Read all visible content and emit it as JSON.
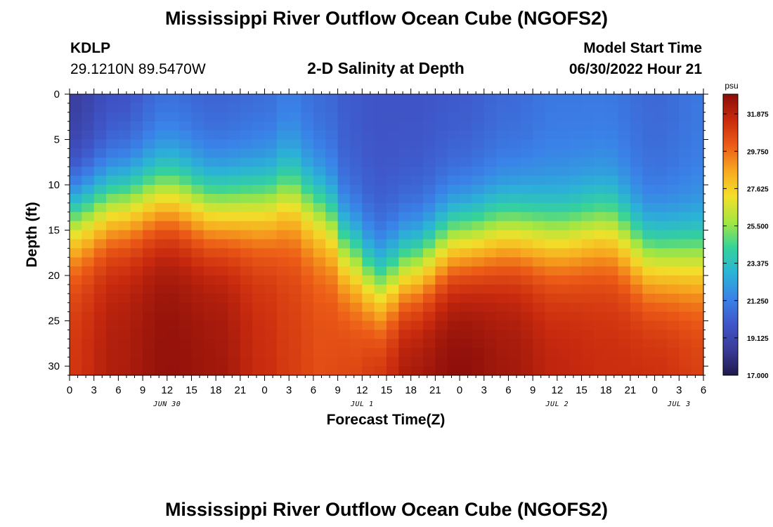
{
  "header": {
    "title": "Mississippi River Outflow Ocean Cube (NGOFS2)",
    "station_id": "KDLP",
    "station_coords": "29.1210N  89.5470W",
    "plot_title": "2-D Salinity at Depth",
    "model_start_label": "Model Start Time",
    "model_start_value": "06/30/2022 Hour 21"
  },
  "footer": {
    "title": "Mississippi River Outflow Ocean Cube (NGOFS2)"
  },
  "chart_data": {
    "type": "heatmap",
    "xlabel": "Forecast Time(Z)",
    "ylabel": "Depth (ft)",
    "x_start": "06/30/2022 00Z",
    "x_range_hours": [
      0,
      78
    ],
    "x_tick_labels": [
      "0",
      "3",
      "6",
      "9",
      "12",
      "15",
      "18",
      "21",
      "0",
      "3",
      "6",
      "9",
      "12",
      "15",
      "18",
      "21",
      "0",
      "3",
      "6",
      "9",
      "12",
      "15",
      "18",
      "21",
      "0",
      "3",
      "6"
    ],
    "date_labels": [
      {
        "label": "JUN 30",
        "hour": 12
      },
      {
        "label": "JUL 1",
        "hour": 36
      },
      {
        "label": "JUL 2",
        "hour": 60
      },
      {
        "label": "JUL 3",
        "hour": 75
      }
    ],
    "y_range_ft": [
      0,
      31
    ],
    "y_inverted": true,
    "y_tick_labels": [
      "0",
      "5",
      "10",
      "15",
      "20",
      "25",
      "30"
    ],
    "colorbar": {
      "unit": "psu",
      "range": [
        17.0,
        33.0
      ],
      "tick_labels": [
        "17.000",
        "19.125",
        "21.250",
        "23.375",
        "25.500",
        "27.625",
        "29.750",
        "31.875"
      ],
      "colors": [
        "#1f1a4e",
        "#3a3b99",
        "#3f56c9",
        "#3a82e8",
        "#2bb3d6",
        "#35d39a",
        "#a6e640",
        "#f2e02a",
        "#f7a91f",
        "#ec5b17",
        "#c82a0e",
        "#8a0e0a"
      ]
    },
    "salinity_profile_by_hour": [
      {
        "hour": 0,
        "surface_psu": 18.5,
        "halocline_ft": 13.5,
        "bottom_psu": 31.2
      },
      {
        "hour": 6,
        "surface_psu": 19.5,
        "halocline_ft": 12.0,
        "bottom_psu": 32.2
      },
      {
        "hour": 12,
        "surface_psu": 20.5,
        "halocline_ft": 11.0,
        "bottom_psu": 32.8
      },
      {
        "hour": 18,
        "surface_psu": 20.2,
        "halocline_ft": 12.5,
        "bottom_psu": 32.5
      },
      {
        "hour": 24,
        "surface_psu": 20.5,
        "halocline_ft": 12.0,
        "bottom_psu": 31.5
      },
      {
        "hour": 27,
        "surface_psu": 21.0,
        "halocline_ft": 11.0,
        "bottom_psu": 31.0
      },
      {
        "hour": 31,
        "surface_psu": 20.5,
        "halocline_ft": 13.0,
        "bottom_psu": 30.5
      },
      {
        "hour": 35,
        "surface_psu": 20.0,
        "halocline_ft": 18.0,
        "bottom_psu": 30.8
      },
      {
        "hour": 38,
        "surface_psu": 19.8,
        "halocline_ft": 21.0,
        "bottom_psu": 31.5
      },
      {
        "hour": 42,
        "surface_psu": 19.8,
        "halocline_ft": 19.0,
        "bottom_psu": 32.5
      },
      {
        "hour": 48,
        "surface_psu": 20.0,
        "halocline_ft": 16.0,
        "bottom_psu": 33.0
      },
      {
        "hour": 54,
        "surface_psu": 20.5,
        "halocline_ft": 15.0,
        "bottom_psu": 32.5
      },
      {
        "hour": 60,
        "surface_psu": 21.0,
        "halocline_ft": 15.5,
        "bottom_psu": 31.8
      },
      {
        "hour": 66,
        "surface_psu": 21.0,
        "halocline_ft": 14.5,
        "bottom_psu": 31.5
      },
      {
        "hour": 72,
        "surface_psu": 20.5,
        "halocline_ft": 18.0,
        "bottom_psu": 31.5
      },
      {
        "hour": 78,
        "surface_psu": 21.0,
        "halocline_ft": 18.0,
        "bottom_psu": 31.0
      }
    ]
  }
}
